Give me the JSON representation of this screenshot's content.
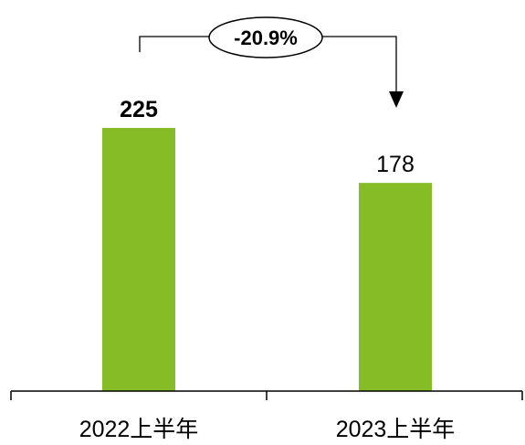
{
  "chart_data": {
    "type": "bar",
    "categories": [
      "2022上半年",
      "2023上半年"
    ],
    "values": [
      225,
      178
    ],
    "value_labels": [
      "225",
      "178"
    ],
    "ylim": [
      0,
      300
    ],
    "bar_color": "#86bc25",
    "axis_color": "#000000",
    "change_annotation": "-20.9%",
    "grid": false
  }
}
